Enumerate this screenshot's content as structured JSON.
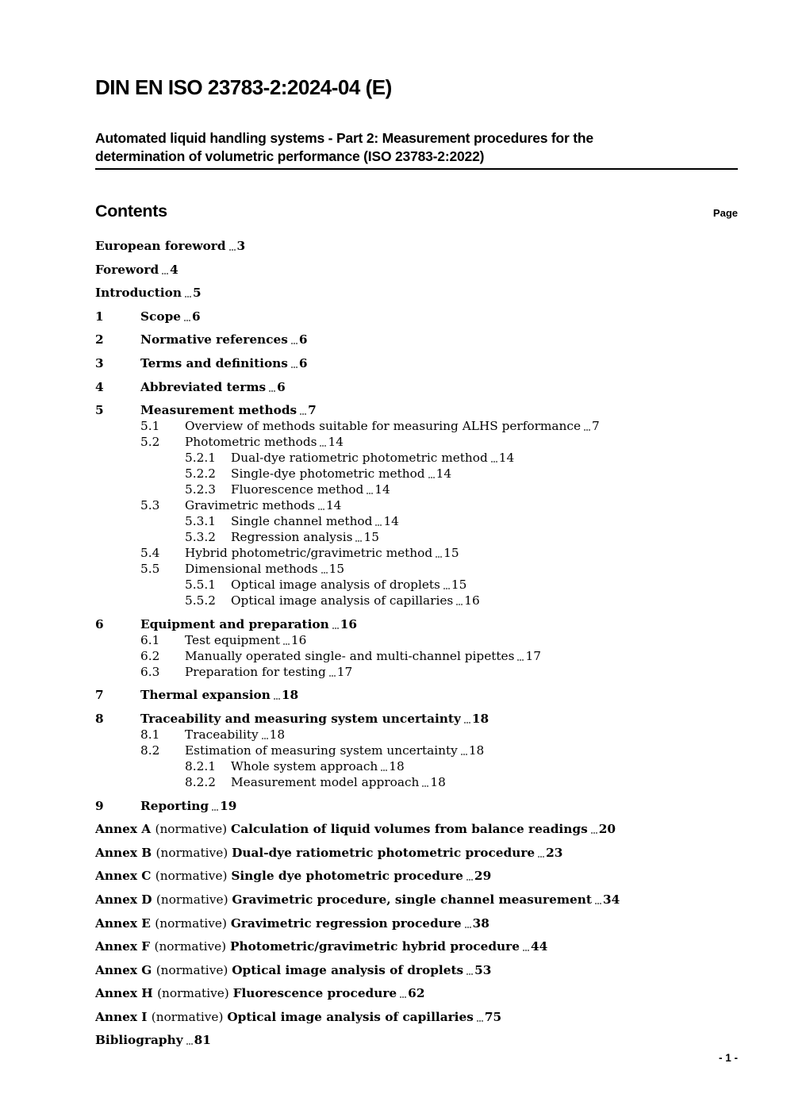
{
  "header": {
    "doc_number": "DIN EN ISO 23783-2:2024-04 (E)",
    "title_line1": "Automated liquid handling systems - Part 2: Measurement procedures for the",
    "title_line2": "determination of volumetric performance (ISO 23783-2:2022)"
  },
  "contents": {
    "heading": "Contents",
    "page_label": "Page"
  },
  "colors": {
    "background": "#ffffff",
    "text": "#000000",
    "dot_leader": "#767676",
    "divider": "#000000"
  },
  "toc": [
    {
      "level": 0,
      "num": "",
      "page": "3",
      "spaced": true,
      "parts": [
        {
          "text": "European foreword",
          "bold": true
        }
      ]
    },
    {
      "level": 0,
      "num": "",
      "page": "4",
      "spaced": true,
      "parts": [
        {
          "text": "Foreword",
          "bold": true
        }
      ]
    },
    {
      "level": 0,
      "num": "",
      "page": "5",
      "spaced": true,
      "parts": [
        {
          "text": "Introduction",
          "bold": true
        }
      ]
    },
    {
      "level": 0,
      "num": "1",
      "page": "6",
      "spaced": true,
      "bold": true,
      "parts": [
        {
          "text": "Scope",
          "bold": true
        }
      ]
    },
    {
      "level": 0,
      "num": "2",
      "page": "6",
      "spaced": true,
      "bold": true,
      "parts": [
        {
          "text": "Normative references",
          "bold": true
        }
      ]
    },
    {
      "level": 0,
      "num": "3",
      "page": "6",
      "spaced": true,
      "bold": true,
      "parts": [
        {
          "text": "Terms and definitions",
          "bold": true
        }
      ]
    },
    {
      "level": 0,
      "num": "4",
      "page": "6",
      "spaced": true,
      "bold": true,
      "parts": [
        {
          "text": "Abbreviated terms",
          "bold": true
        }
      ]
    },
    {
      "level": 0,
      "num": "5",
      "page": "7",
      "spaced": true,
      "bold": true,
      "parts": [
        {
          "text": "Measurement methods",
          "bold": true
        }
      ]
    },
    {
      "level": 1,
      "num": "5.1",
      "page": "7",
      "parts": [
        {
          "text": "Overview of methods suitable for measuring ALHS performance",
          "bold": false
        }
      ]
    },
    {
      "level": 1,
      "num": "5.2",
      "page": "14",
      "parts": [
        {
          "text": "Photometric methods",
          "bold": false
        }
      ]
    },
    {
      "level": 2,
      "num": "5.2.1",
      "page": "14",
      "parts": [
        {
          "text": "Dual-dye ratiometric photometric method",
          "bold": false
        }
      ]
    },
    {
      "level": 2,
      "num": "5.2.2",
      "page": "14",
      "parts": [
        {
          "text": "Single-dye photometric method",
          "bold": false
        }
      ]
    },
    {
      "level": 2,
      "num": "5.2.3",
      "page": "14",
      "parts": [
        {
          "text": "Fluorescence method",
          "bold": false
        }
      ]
    },
    {
      "level": 1,
      "num": "5.3",
      "page": "14",
      "parts": [
        {
          "text": "Gravimetric methods",
          "bold": false
        }
      ]
    },
    {
      "level": 2,
      "num": "5.3.1",
      "page": "14",
      "parts": [
        {
          "text": "Single channel method",
          "bold": false
        }
      ]
    },
    {
      "level": 2,
      "num": "5.3.2",
      "page": "15",
      "parts": [
        {
          "text": "Regression analysis",
          "bold": false
        }
      ]
    },
    {
      "level": 1,
      "num": "5.4",
      "page": "15",
      "parts": [
        {
          "text": "Hybrid photometric/gravimetric method",
          "bold": false
        }
      ]
    },
    {
      "level": 1,
      "num": "5.5",
      "page": "15",
      "parts": [
        {
          "text": "Dimensional methods",
          "bold": false
        }
      ]
    },
    {
      "level": 2,
      "num": "5.5.1",
      "page": "15",
      "parts": [
        {
          "text": "Optical image analysis of droplets",
          "bold": false
        }
      ]
    },
    {
      "level": 2,
      "num": "5.5.2",
      "page": "16",
      "parts": [
        {
          "text": "Optical image analysis of capillaries",
          "bold": false
        }
      ]
    },
    {
      "level": 0,
      "num": "6",
      "page": "16",
      "spaced": true,
      "bold": true,
      "parts": [
        {
          "text": "Equipment and preparation",
          "bold": true
        }
      ]
    },
    {
      "level": 1,
      "num": "6.1",
      "page": "16",
      "parts": [
        {
          "text": "Test equipment",
          "bold": false
        }
      ]
    },
    {
      "level": 1,
      "num": "6.2",
      "page": "17",
      "parts": [
        {
          "text": "Manually operated single- and multi-channel pipettes",
          "bold": false
        }
      ]
    },
    {
      "level": 1,
      "num": "6.3",
      "page": "17",
      "parts": [
        {
          "text": "Preparation for testing",
          "bold": false
        }
      ]
    },
    {
      "level": 0,
      "num": "7",
      "page": "18",
      "spaced": true,
      "bold": true,
      "parts": [
        {
          "text": "Thermal expansion",
          "bold": true
        }
      ]
    },
    {
      "level": 0,
      "num": "8",
      "page": "18",
      "spaced": true,
      "bold": true,
      "parts": [
        {
          "text": "Traceability and measuring system uncertainty",
          "bold": true
        }
      ]
    },
    {
      "level": 1,
      "num": "8.1",
      "page": "18",
      "parts": [
        {
          "text": "Traceability",
          "bold": false
        }
      ]
    },
    {
      "level": 1,
      "num": "8.2",
      "page": "18",
      "parts": [
        {
          "text": "Estimation of measuring system uncertainty",
          "bold": false
        }
      ]
    },
    {
      "level": 2,
      "num": "8.2.1",
      "page": "18",
      "parts": [
        {
          "text": "Whole system approach",
          "bold": false
        }
      ]
    },
    {
      "level": 2,
      "num": "8.2.2",
      "page": "18",
      "parts": [
        {
          "text": "Measurement model approach",
          "bold": false
        }
      ]
    },
    {
      "level": 0,
      "num": "9",
      "page": "19",
      "spaced": true,
      "bold": true,
      "parts": [
        {
          "text": "Reporting",
          "bold": true
        }
      ]
    },
    {
      "level": 0,
      "num": "",
      "page": "20",
      "spaced": true,
      "bold": true,
      "parts": [
        {
          "text": "Annex A ",
          "bold": true
        },
        {
          "text": "(normative) ",
          "bold": false
        },
        {
          "text": "Calculation of liquid volumes from balance readings",
          "bold": true
        }
      ]
    },
    {
      "level": 0,
      "num": "",
      "page": "23",
      "spaced": true,
      "bold": true,
      "parts": [
        {
          "text": "Annex B ",
          "bold": true
        },
        {
          "text": "(normative) ",
          "bold": false
        },
        {
          "text": "Dual-dye ratiometric photometric procedure",
          "bold": true
        }
      ]
    },
    {
      "level": 0,
      "num": "",
      "page": "29",
      "spaced": true,
      "bold": true,
      "parts": [
        {
          "text": "Annex C ",
          "bold": true
        },
        {
          "text": "(normative) ",
          "bold": false
        },
        {
          "text": "Single dye photometric procedure",
          "bold": true
        }
      ]
    },
    {
      "level": 0,
      "num": "",
      "page": "34",
      "spaced": true,
      "bold": true,
      "parts": [
        {
          "text": "Annex D ",
          "bold": true
        },
        {
          "text": "(normative) ",
          "bold": false
        },
        {
          "text": "Gravimetric procedure, single channel measurement",
          "bold": true
        }
      ]
    },
    {
      "level": 0,
      "num": "",
      "page": "38",
      "spaced": true,
      "bold": true,
      "parts": [
        {
          "text": "Annex E ",
          "bold": true
        },
        {
          "text": "(normative) ",
          "bold": false
        },
        {
          "text": "Gravimetric regression procedure",
          "bold": true
        }
      ]
    },
    {
      "level": 0,
      "num": "",
      "page": "44",
      "spaced": true,
      "bold": true,
      "parts": [
        {
          "text": "Annex F ",
          "bold": true
        },
        {
          "text": "(normative) ",
          "bold": false
        },
        {
          "text": "Photometric/gravimetric hybrid procedure",
          "bold": true
        }
      ]
    },
    {
      "level": 0,
      "num": "",
      "page": "53",
      "spaced": true,
      "bold": true,
      "parts": [
        {
          "text": "Annex G ",
          "bold": true
        },
        {
          "text": "(normative) ",
          "bold": false
        },
        {
          "text": "Optical image analysis of droplets",
          "bold": true
        }
      ]
    },
    {
      "level": 0,
      "num": "",
      "page": "62",
      "spaced": true,
      "bold": true,
      "parts": [
        {
          "text": "Annex H ",
          "bold": true
        },
        {
          "text": "(normative) ",
          "bold": false
        },
        {
          "text": "Fluorescence procedure",
          "bold": true
        }
      ]
    },
    {
      "level": 0,
      "num": "",
      "page": "75",
      "spaced": true,
      "bold": true,
      "parts": [
        {
          "text": "Annex I ",
          "bold": true
        },
        {
          "text": "(normative) ",
          "bold": false
        },
        {
          "text": "Optical image analysis of capillaries",
          "bold": true
        }
      ]
    },
    {
      "level": 0,
      "num": "",
      "page": "81",
      "spaced": true,
      "bold": true,
      "parts": [
        {
          "text": "Bibliography",
          "bold": true
        }
      ]
    }
  ],
  "footer": {
    "page_indicator": "- 1 -"
  }
}
